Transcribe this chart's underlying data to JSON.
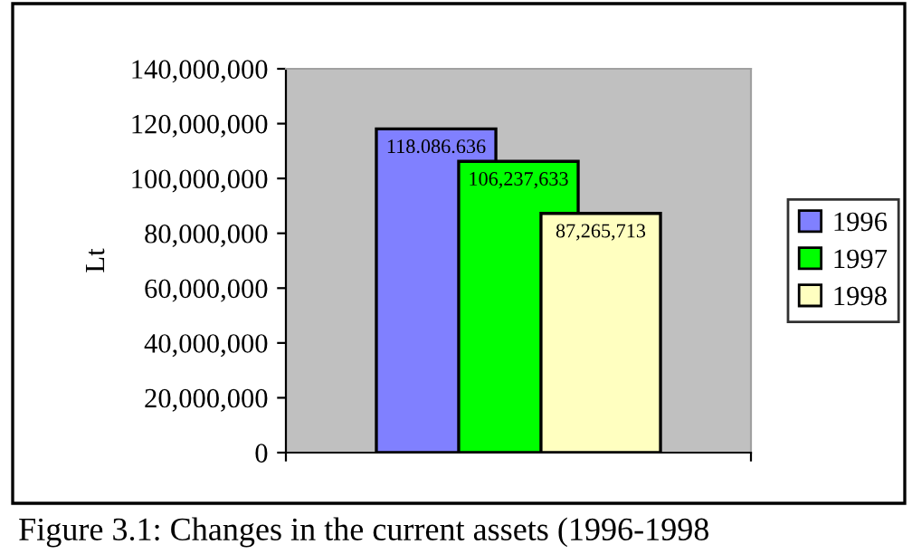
{
  "chart_data": {
    "type": "bar",
    "ylabel": "Lt",
    "categories": [
      null
    ],
    "series": [
      {
        "name": "1996",
        "color": "#8080ff",
        "values": [
          118086636
        ],
        "value_labels": [
          "118.086.636"
        ]
      },
      {
        "name": "1997",
        "color": "#00ff00",
        "values": [
          106237633
        ],
        "value_labels": [
          "106,237,633"
        ]
      },
      {
        "name": "1998",
        "color": "#ffffc0",
        "values": [
          87265713
        ],
        "value_labels": [
          "87,265,713"
        ]
      }
    ],
    "ylim": [
      0,
      140000000
    ],
    "yticks": [
      {
        "value": 0,
        "label": "0"
      },
      {
        "value": 20000000,
        "label": "20,000,000"
      },
      {
        "value": 40000000,
        "label": "40,000,000"
      },
      {
        "value": 60000000,
        "label": "60,000,000"
      },
      {
        "value": 80000000,
        "label": "80,000,000"
      },
      {
        "value": 100000000,
        "label": "100,000,000"
      },
      {
        "value": 120000000,
        "label": "120,000,000"
      },
      {
        "value": 140000000,
        "label": "140,000,000"
      }
    ],
    "grid": false,
    "legend": "right",
    "annotations": [
      "Figure 3.1: Changes in the current assets (1996-1998"
    ]
  }
}
